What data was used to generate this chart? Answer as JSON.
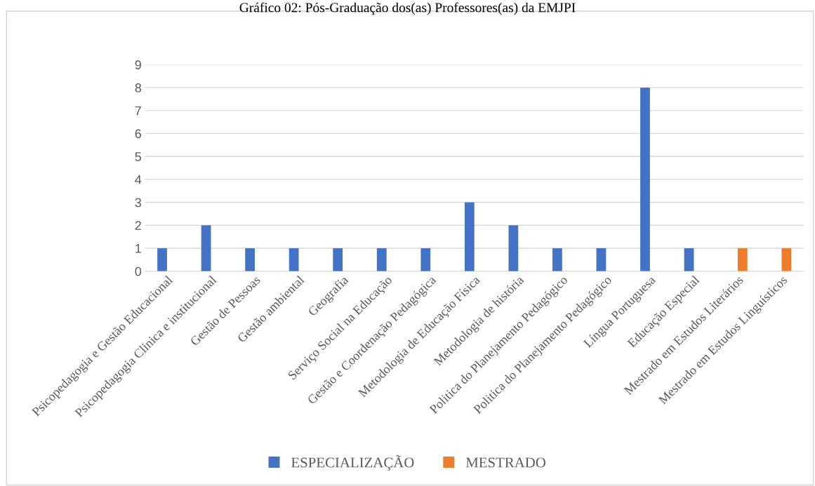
{
  "chart_data": {
    "type": "bar",
    "title": "Gráfico 02: Pós-Graduação dos(as) Professores(as) da EMJPI",
    "categories": [
      "Psicopedagogia e Gestão Educacional",
      "Psicopedagogia Clinica e institucional",
      "Gestão de Pessoas",
      "Gestão ambiental",
      "Geografia",
      "Serviço Social na Educação",
      "Gestão e Coordenação Pedagógica",
      "Metodologia de Educação Física",
      "Metodologia de história",
      "Politica do Planejamento Pedagógico",
      "Politica do Planejamento Pedagógico",
      "Língua Portuguesa",
      "Educação Especial",
      "Mestrado em Estudos Literários",
      "Mestrado em Estudos Linguísticos"
    ],
    "series": [
      {
        "name": "ESPECIALIZAÇÃO",
        "color": "#4472c4",
        "values": [
          1,
          2,
          1,
          1,
          1,
          1,
          1,
          3,
          2,
          1,
          1,
          8,
          1,
          null,
          null
        ]
      },
      {
        "name": "MESTRADO",
        "color": "#ed7d31",
        "values": [
          null,
          null,
          null,
          null,
          null,
          null,
          null,
          null,
          null,
          null,
          null,
          null,
          null,
          1,
          1
        ]
      }
    ],
    "ylim": [
      0,
      9
    ],
    "yticks": [
      0,
      1,
      2,
      3,
      4,
      5,
      6,
      7,
      8,
      9
    ],
    "grid": "y",
    "legend": "bottom"
  }
}
